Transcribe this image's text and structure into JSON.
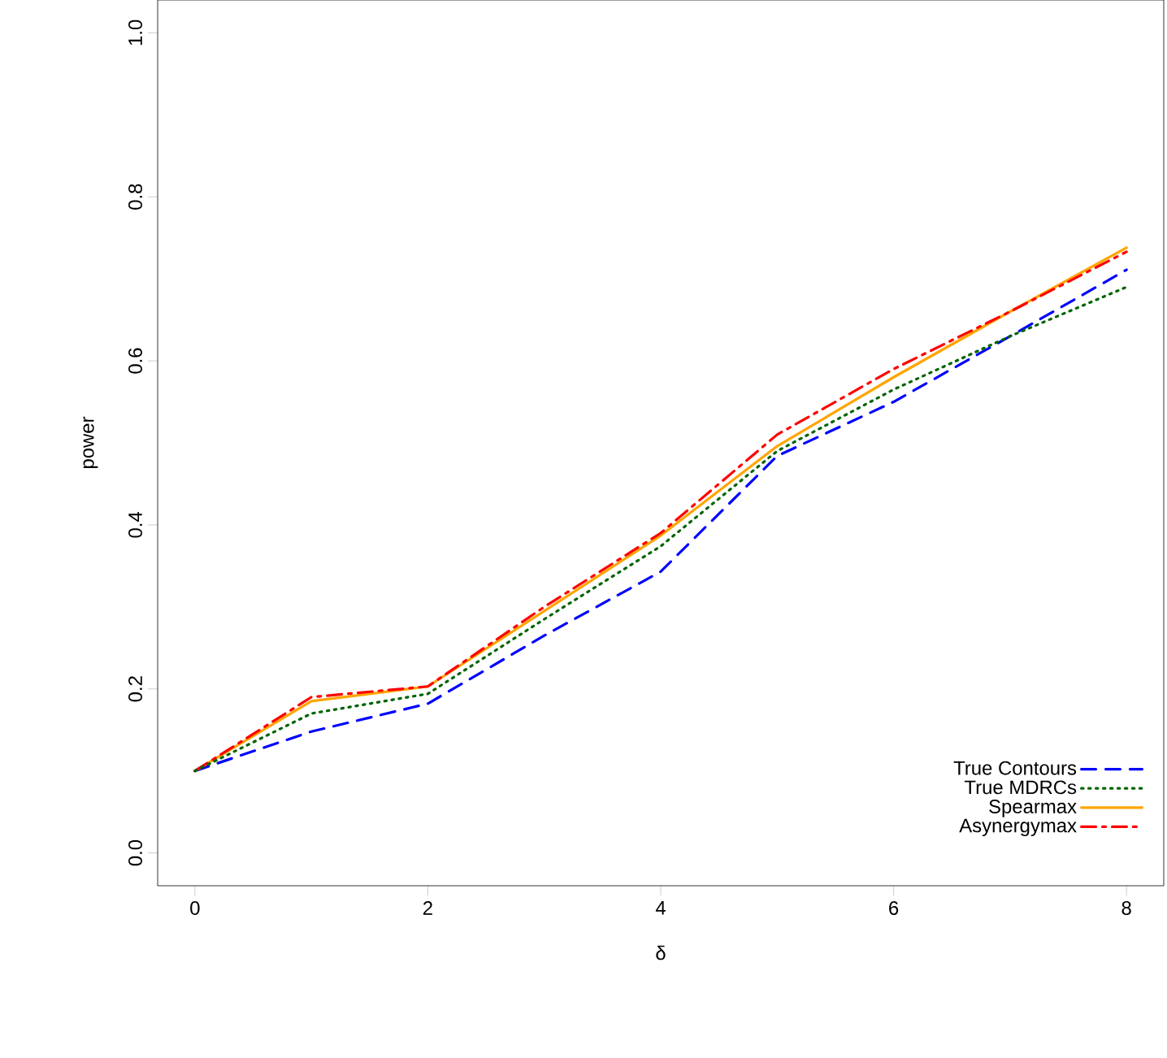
{
  "chart_data": {
    "type": "line",
    "xlabel": "δ",
    "ylabel": "power",
    "x": [
      0,
      1,
      2,
      3,
      4,
      5,
      6,
      7,
      8
    ],
    "series": [
      {
        "name": "True Contours",
        "color": "#0000ff",
        "line_style": "dashed",
        "values": [
          0.1,
          0.148,
          0.182,
          0.265,
          0.343,
          0.484,
          0.55,
          0.63,
          0.711
        ]
      },
      {
        "name": "True MDRCs",
        "color": "#006400",
        "line_style": "dotted",
        "values": [
          0.1,
          0.17,
          0.194,
          0.285,
          0.374,
          0.49,
          0.565,
          0.63,
          0.69
        ]
      },
      {
        "name": "Spearmax",
        "color": "#ffa500",
        "line_style": "solid",
        "values": [
          0.1,
          0.185,
          0.203,
          0.295,
          0.387,
          0.496,
          0.58,
          0.66,
          0.738
        ]
      },
      {
        "name": "Asynergymax",
        "color": "#ff0000",
        "line_style": "dashdot",
        "values": [
          0.1,
          0.19,
          0.203,
          0.3,
          0.39,
          0.51,
          0.59,
          0.66,
          0.733
        ]
      }
    ],
    "xlim": [
      -0.32,
      8.32
    ],
    "ylim": [
      -0.04,
      1.04
    ],
    "xticks": [
      0,
      2,
      4,
      6,
      8
    ],
    "yticks": [
      {
        "value": 0,
        "label": "0.0"
      },
      0.2,
      0.4,
      0.6,
      0.8,
      {
        "value": 1,
        "label": "1.0"
      }
    ],
    "legend": "bottom right",
    "grid": false
  }
}
